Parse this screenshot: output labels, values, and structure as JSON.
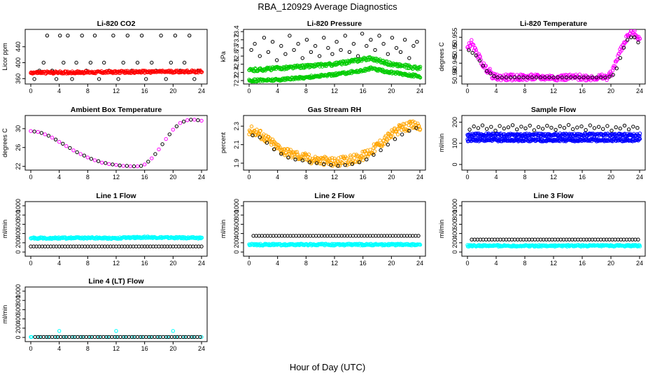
{
  "figure": {
    "title": "RBA_120929  Average Diagnostics",
    "xlabel": "Hour of Day (UTC)"
  },
  "colors": {
    "black": "#000000",
    "red": "#ff0000",
    "green": "#00cc00",
    "magenta": "#ff00ff",
    "orange": "#ffa500",
    "blue": "#0000ff",
    "cyan": "#00ffff"
  },
  "chart_data": [
    {
      "type": "scatter",
      "title": "Li-820 CO2",
      "ylabel": "Licor ppm",
      "xlim": [
        0,
        24
      ],
      "ylim": [
        350,
        480
      ],
      "xticks": [
        0,
        4,
        8,
        12,
        16,
        20,
        24
      ],
      "yticks": [
        360,
        400,
        440
      ],
      "series": [
        {
          "color": "#000000",
          "marker": "open-circle",
          "discrete": true,
          "x": [
            0.5,
            1.2,
            1.8,
            2.3,
            3.0,
            3.6,
            4.1,
            4.6,
            5.2,
            5.8,
            6.4,
            7.2,
            7.8,
            8.4,
            9.0,
            9.6,
            10.3,
            11.0,
            11.6,
            12.3,
            13.0,
            13.6,
            14.2,
            15.0,
            15.6,
            16.2,
            17.0,
            17.6,
            18.3,
            19.0,
            19.7,
            20.3,
            21.0,
            21.6,
            22.3,
            23.0,
            23.6
          ],
          "y": [
            359,
            380,
            400,
            468,
            380,
            359,
            468,
            400,
            468,
            359,
            400,
            468,
            380,
            400,
            468,
            359,
            400,
            380,
            468,
            359,
            400,
            468,
            380,
            400,
            468,
            359,
            400,
            380,
            468,
            359,
            400,
            468,
            380,
            400,
            468,
            359,
            380
          ]
        },
        {
          "color": "#ff0000",
          "marker": "dense-band",
          "x": [
            0,
            24
          ],
          "y": [
            375,
            378
          ],
          "spread": 3
        }
      ]
    },
    {
      "type": "scatter",
      "title": "Li-820 Pressure",
      "ylabel": "kPa",
      "xlim": [
        0,
        24
      ],
      "ylim": [
        72.15,
        73.42
      ],
      "xticks": [
        0,
        4,
        8,
        12,
        16,
        20,
        24
      ],
      "yticks": [
        72.2,
        72.4,
        72.6,
        72.8,
        73.0,
        73.2,
        73.4
      ],
      "series": [
        {
          "color": "#000000",
          "marker": "open-circle",
          "scatter": true,
          "x": [
            0.3,
            0.8,
            1.5,
            2.1,
            2.7,
            3.3,
            3.9,
            4.5,
            5.1,
            5.7,
            6.3,
            6.9,
            7.5,
            8.1,
            8.7,
            9.3,
            9.9,
            10.5,
            11.1,
            11.7,
            12.3,
            12.9,
            13.5,
            14.1,
            14.7,
            15.3,
            15.9,
            16.5,
            17.1,
            17.7,
            18.3,
            18.9,
            19.5,
            20.1,
            20.7,
            21.3,
            21.9,
            22.5,
            23.1,
            23.6
          ],
          "y": [
            72.95,
            73.1,
            72.8,
            73.25,
            72.9,
            73.15,
            72.7,
            73.05,
            72.85,
            73.3,
            72.95,
            73.1,
            72.75,
            73.2,
            72.9,
            73.05,
            72.8,
            73.25,
            73.0,
            72.85,
            73.15,
            72.95,
            73.3,
            72.9,
            73.1,
            72.8,
            73.35,
            73.05,
            73.2,
            72.95,
            73.3,
            73.1,
            72.85,
            73.25,
            73.0,
            72.9,
            73.2,
            72.75,
            73.05,
            73.15
          ]
        },
        {
          "color": "#00cc00",
          "marker": "dense-band",
          "x": [
            0,
            4,
            8,
            12,
            16,
            17,
            20,
            24
          ],
          "y": [
            72.45,
            72.5,
            72.55,
            72.6,
            72.72,
            72.75,
            72.6,
            72.5
          ],
          "spread": 0.04
        },
        {
          "color": "#00cc00",
          "marker": "dense-band",
          "x": [
            0,
            4,
            8,
            12,
            16,
            17,
            20,
            24
          ],
          "y": [
            72.2,
            72.22,
            72.28,
            72.35,
            72.45,
            72.5,
            72.4,
            72.3
          ],
          "spread": 0.03
        }
      ]
    },
    {
      "type": "scatter",
      "title": "Li-820 Temperature",
      "ylabel": "degrees C",
      "xlim": [
        0,
        24
      ],
      "ylim": [
        50.9375,
        50.9575
      ],
      "xticks": [
        0,
        4,
        8,
        12,
        16,
        20,
        24
      ],
      "yticks": [
        50.94,
        50.945,
        50.95,
        50.955
      ],
      "series": [
        {
          "color": "#ff00ff",
          "marker": "dense-band",
          "x": [
            0,
            0.5,
            1.0,
            1.5,
            2.0,
            2.5,
            3.0,
            3.5,
            4.0,
            19.5,
            20.0,
            20.5,
            21.0,
            21.5,
            22.0,
            22.5,
            23.0,
            23.5,
            24.0
          ],
          "y": [
            50.951,
            50.953,
            50.95,
            50.948,
            50.945,
            50.943,
            50.942,
            50.94,
            50.9395,
            50.9395,
            50.941,
            50.944,
            50.948,
            50.951,
            50.954,
            50.956,
            50.957,
            50.956,
            50.954
          ],
          "spread": 0.0012
        },
        {
          "color": "#000000",
          "marker": "open-circle",
          "x": [
            0.2,
            0.7,
            1.2,
            1.7,
            2.2,
            2.7,
            3.2,
            3.7,
            4.2,
            4.8,
            5.4,
            6.0,
            6.6,
            7.2,
            7.8,
            8.4,
            9.0,
            9.6,
            10.2,
            10.8,
            11.4,
            12.0,
            12.6,
            13.2,
            13.8,
            14.4,
            15.0,
            15.6,
            16.2,
            16.8,
            17.4,
            18.0,
            18.6,
            19.2,
            19.8,
            20.3,
            20.8,
            21.3,
            21.8,
            22.3,
            22.8,
            23.3,
            23.8
          ],
          "y": [
            50.95,
            50.949,
            50.948,
            50.946,
            50.944,
            50.942,
            50.941,
            50.94,
            50.9395,
            50.9395,
            50.9395,
            50.9395,
            50.9395,
            50.9395,
            50.9395,
            50.9395,
            50.9395,
            50.9395,
            50.9395,
            50.9395,
            50.9395,
            50.9395,
            50.9395,
            50.9395,
            50.9395,
            50.9395,
            50.9395,
            50.9395,
            50.9395,
            50.9395,
            50.9395,
            50.9395,
            50.9395,
            50.9395,
            50.9398,
            50.9405,
            50.943,
            50.947,
            50.951,
            50.954,
            50.955,
            50.955,
            50.953
          ]
        }
      ]
    },
    {
      "type": "scatter",
      "title": "Ambient Box Temperature",
      "ylabel": "degrees C",
      "xlim": [
        0,
        24
      ],
      "ylim": [
        21.5,
        32.5
      ],
      "xticks": [
        0,
        4,
        8,
        12,
        16,
        20,
        24
      ],
      "yticks": [
        22,
        26,
        30
      ],
      "series": [
        {
          "color": "#ff00ff",
          "marker": "open-circle",
          "x": [
            0,
            1,
            2,
            3,
            4,
            5,
            6,
            7,
            8,
            9,
            10,
            11,
            12,
            13,
            14,
            15,
            16,
            17,
            18,
            19,
            20,
            21,
            22,
            23,
            24
          ],
          "y": [
            29.5,
            29.3,
            28.8,
            28.1,
            27.2,
            26.3,
            25.4,
            24.6,
            23.9,
            23.3,
            22.8,
            22.5,
            22.3,
            22.1,
            22.0,
            22.0,
            22.4,
            23.7,
            25.6,
            27.8,
            29.8,
            31.2,
            31.8,
            31.9,
            31.7
          ]
        },
        {
          "color": "#000000",
          "marker": "open-circle",
          "x": [
            0.5,
            1.5,
            2.5,
            3.5,
            4.5,
            5.5,
            6.5,
            7.5,
            8.5,
            9.5,
            10.5,
            11.5,
            12.5,
            13.5,
            14.5,
            15.5,
            16.5,
            17.5,
            18.5,
            19.5,
            20.5,
            21.5,
            22.5,
            23.5
          ],
          "y": [
            29.4,
            29.1,
            28.5,
            27.7,
            26.8,
            25.9,
            25.0,
            24.3,
            23.6,
            23.1,
            22.7,
            22.4,
            22.2,
            22.1,
            22.0,
            22.1,
            23.0,
            24.6,
            26.7,
            28.8,
            30.5,
            31.5,
            31.9,
            31.8
          ]
        }
      ]
    },
    {
      "type": "scatter",
      "title": "Gas Stream RH",
      "ylabel": "percent",
      "xlim": [
        0,
        24
      ],
      "ylim": [
        1.84,
        2.4
      ],
      "xticks": [
        0,
        4,
        8,
        12,
        16,
        20,
        24
      ],
      "yticks": [
        1.9,
        2.1,
        2.3
      ],
      "series": [
        {
          "color": "#ffa500",
          "marker": "dense-band",
          "x": [
            0,
            1,
            2,
            3,
            4,
            5,
            6,
            7,
            8,
            9,
            10,
            11,
            12,
            13,
            14,
            15,
            16,
            17,
            18,
            19,
            20,
            21,
            22,
            23,
            24
          ],
          "y": [
            2.26,
            2.24,
            2.19,
            2.13,
            2.07,
            2.03,
            2.0,
            1.98,
            1.96,
            1.94,
            1.93,
            1.92,
            1.91,
            1.92,
            1.93,
            1.95,
            1.98,
            2.03,
            2.09,
            2.15,
            2.21,
            2.26,
            2.29,
            2.31,
            2.3
          ],
          "spread": 0.05
        },
        {
          "color": "#000000",
          "marker": "open-circle",
          "x": [
            0.5,
            1.5,
            2.5,
            3.5,
            4.5,
            5.5,
            6.5,
            7.5,
            8.5,
            9.5,
            10.5,
            11.5,
            12.5,
            13.5,
            14.5,
            15.5,
            16.5,
            17.5,
            18.5,
            19.5,
            20.5,
            21.5,
            22.5,
            23.5
          ],
          "y": [
            2.2,
            2.18,
            2.12,
            2.05,
            2.0,
            1.96,
            1.94,
            1.93,
            1.91,
            1.9,
            1.89,
            1.88,
            1.87,
            1.88,
            1.89,
            1.91,
            1.94,
            1.99,
            2.04,
            2.1,
            2.16,
            2.21,
            2.25,
            2.28
          ]
        }
      ]
    },
    {
      "type": "scatter",
      "title": "Sample Flow",
      "ylabel": "ml/min",
      "xlim": [
        0,
        24
      ],
      "ylim": [
        -20,
        225
      ],
      "xticks": [
        0,
        4,
        8,
        12,
        16,
        20,
        24
      ],
      "yticks": [
        0,
        100,
        200
      ],
      "series": [
        {
          "color": "#000000",
          "marker": "open-circle",
          "scatter": true,
          "x": [
            0.3,
            0.9,
            1.5,
            2.1,
            2.7,
            3.3,
            3.9,
            4.5,
            5.1,
            5.7,
            6.3,
            6.9,
            7.5,
            8.1,
            8.7,
            9.3,
            9.9,
            10.5,
            11.1,
            11.7,
            12.3,
            12.9,
            13.5,
            14.1,
            14.7,
            15.3,
            15.9,
            16.5,
            17.1,
            17.7,
            18.3,
            18.9,
            19.5,
            20.1,
            20.7,
            21.3,
            21.9,
            22.5,
            23.1,
            23.7
          ],
          "y": [
            165,
            180,
            172,
            185,
            168,
            178,
            160,
            182,
            170,
            176,
            186,
            166,
            179,
            171,
            184,
            162,
            177,
            169,
            183,
            174,
            164,
            181,
            173,
            187,
            167,
            175,
            180,
            163,
            185,
            172,
            178,
            168,
            182,
            160,
            176,
            170,
            184,
            166,
            179,
            173
          ]
        },
        {
          "color": "#0000ff",
          "marker": "dense-band",
          "x": [
            0,
            24
          ],
          "y": [
            140,
            140
          ],
          "spread": 7
        },
        {
          "color": "#0000ff",
          "marker": "dense-band",
          "x": [
            0,
            24
          ],
          "y": [
            115,
            115
          ],
          "spread": 6
        }
      ]
    },
    {
      "type": "scatter",
      "title": "Line 1 Flow",
      "ylabel": "ml/min",
      "xlim": [
        0,
        24
      ],
      "ylim": [
        -60,
        1060
      ],
      "xticks": [
        0,
        4,
        8,
        12,
        16,
        20,
        24
      ],
      "yticks": [
        0,
        200,
        400,
        600,
        800,
        1000
      ],
      "series": [
        {
          "color": "#00ffff",
          "marker": "dense-band",
          "x": [
            0,
            8,
            12,
            16,
            20,
            24
          ],
          "y": [
            300,
            305,
            300,
            320,
            310,
            305
          ],
          "spread": 18
        },
        {
          "color": "#000000",
          "marker": "open-circle",
          "x": [
            0,
            24
          ],
          "y": [
            120,
            120
          ],
          "step": 0.4
        }
      ]
    },
    {
      "type": "scatter",
      "title": "Line 2 Flow",
      "ylabel": "ml/min",
      "xlim": [
        0,
        24
      ],
      "ylim": [
        -60,
        1060
      ],
      "xticks": [
        0,
        4,
        8,
        12,
        16,
        20,
        24
      ],
      "yticks": [
        0,
        200,
        400,
        600,
        800,
        1000
      ],
      "series": [
        {
          "color": "#00ffff",
          "marker": "dense-band",
          "x": [
            0,
            24
          ],
          "y": [
            160,
            160
          ],
          "spread": 20
        },
        {
          "color": "#000000",
          "marker": "open-circle",
          "x": [
            0.6,
            24
          ],
          "y": [
            350,
            350
          ],
          "step": 0.4
        }
      ]
    },
    {
      "type": "scatter",
      "title": "Line 3 Flow",
      "ylabel": "ml/min",
      "xlim": [
        0,
        24
      ],
      "ylim": [
        -60,
        1060
      ],
      "xticks": [
        0,
        4,
        8,
        12,
        16,
        20,
        24
      ],
      "yticks": [
        0,
        200,
        400,
        600,
        800,
        1000
      ],
      "series": [
        {
          "color": "#00ffff",
          "marker": "dense-band",
          "x": [
            0,
            24
          ],
          "y": [
            135,
            135
          ],
          "spread": 18
        },
        {
          "color": "#000000",
          "marker": "open-circle",
          "x": [
            0.6,
            24
          ],
          "y": [
            270,
            270
          ],
          "step": 0.4
        }
      ]
    },
    {
      "type": "scatter",
      "title": "Line 4 (LT) Flow",
      "ylabel": "ml/min",
      "xlim": [
        0,
        24
      ],
      "ylim": [
        -60,
        1060
      ],
      "xticks": [
        0,
        4,
        8,
        12,
        16,
        20,
        24
      ],
      "yticks": [
        0,
        200,
        400,
        600,
        800,
        1000
      ],
      "series": [
        {
          "color": "#00ffff",
          "marker": "open-circle",
          "x": [
            0,
            24
          ],
          "y": [
            10,
            10
          ],
          "step": 0.6
        },
        {
          "color": "#00ffff",
          "marker": "open-circle",
          "discrete": true,
          "x": [
            0.1,
            4.0,
            12.0,
            20.0
          ],
          "y": [
            10,
            140,
            140,
            140
          ]
        },
        {
          "color": "#000000",
          "marker": "open-circle",
          "x": [
            0.6,
            24
          ],
          "y": [
            10,
            10
          ],
          "step": 0.4
        }
      ]
    }
  ]
}
